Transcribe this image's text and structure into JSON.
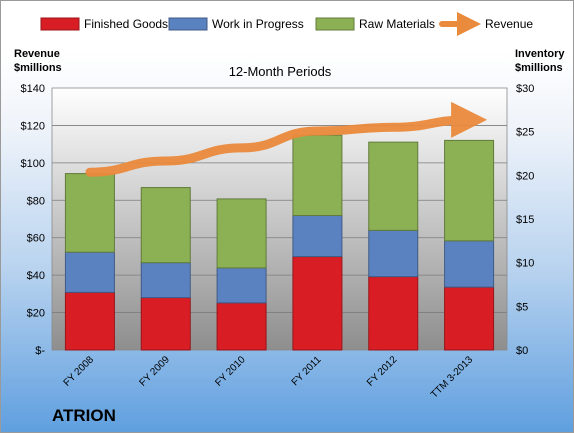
{
  "chart_data": {
    "type": "bar",
    "stacked": true,
    "title": "12-Month Periods",
    "categories": [
      "FY 2008",
      "FY 2009",
      "FY 2010",
      "FY 2011",
      "FY 2012",
      "TTM 3-2013"
    ],
    "series": [
      {
        "name": "Finished Goods",
        "axis": "right",
        "color": "#d81e24",
        "values": [
          6.6,
          6.0,
          5.4,
          10.7,
          8.4,
          7.2
        ]
      },
      {
        "name": "Work in Progress",
        "axis": "right",
        "color": "#5b82c0",
        "values": [
          4.6,
          4.0,
          4.0,
          4.7,
          5.3,
          5.3
        ]
      },
      {
        "name": "Raw Materials",
        "axis": "right",
        "color": "#8cb054",
        "values": [
          9.0,
          8.6,
          7.9,
          9.2,
          10.1,
          11.5
        ]
      },
      {
        "name": "Revenue",
        "axis": "left",
        "type": "line",
        "color": "#ea8a3c",
        "values": [
          95,
          101,
          108,
          117,
          119,
          123
        ]
      }
    ],
    "ylabel_left": "Revenue $millions",
    "ylabel_right": "Inventory $millions",
    "ylim_left": [
      0,
      140
    ],
    "ylim_right": [
      0,
      30
    ],
    "yticks_left": [
      "$-",
      "$20",
      "$40",
      "$60",
      "$80",
      "$100",
      "$120",
      "$140"
    ],
    "yticks_right": [
      "$0",
      "$5",
      "$10",
      "$15",
      "$20",
      "$25",
      "$30"
    ],
    "grid": true,
    "legend_position": "top"
  },
  "header": {
    "left_label_line1": "Revenue",
    "left_label_line2": "$millions",
    "right_label_line1": "Inventory",
    "right_label_line2": "$millions"
  },
  "company": "ATRION"
}
